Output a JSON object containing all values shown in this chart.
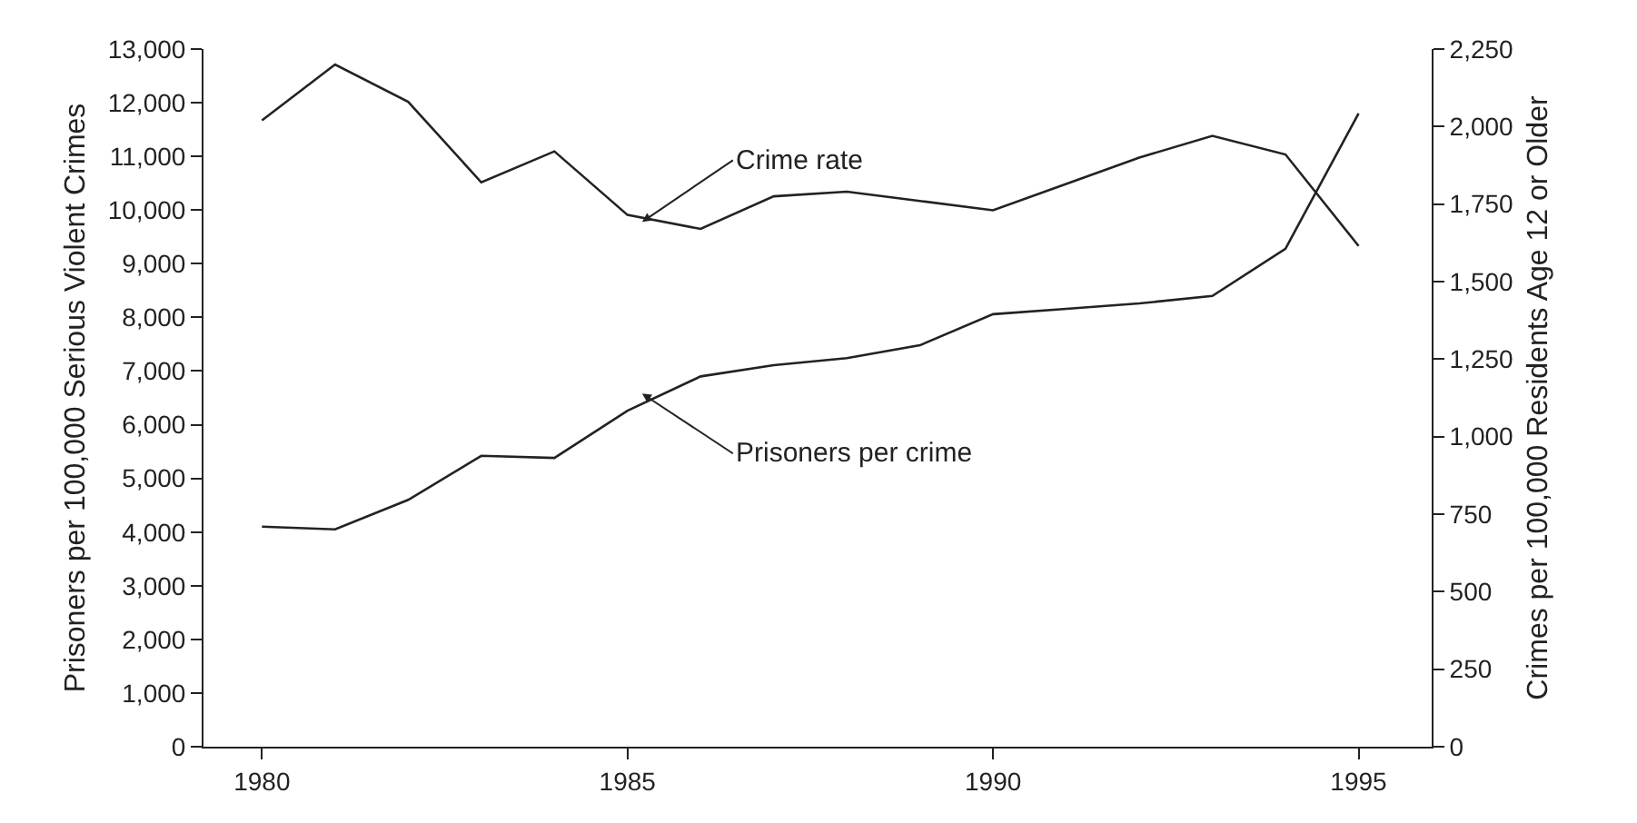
{
  "chart_data": {
    "type": "line",
    "ylabel": "Prisoners per 100,000 Serious Violent Crimes",
    "y2label": "Crimes per 100,000 Residents Age 12 or Older",
    "x": [
      1980,
      1981,
      1982,
      1983,
      1984,
      1985,
      1986,
      1987,
      1988,
      1989,
      1990,
      1991,
      1992,
      1993,
      1994,
      1995
    ],
    "series": [
      {
        "name": "Crime rate",
        "color": "#222222",
        "axis": "y2",
        "values": [
          2020,
          2200,
          2080,
          1820,
          1920,
          1715,
          1670,
          1775,
          1790,
          1760,
          1730,
          1815,
          1900,
          1970,
          1910,
          1615
        ]
      },
      {
        "name": "Prisoners per crime",
        "color": "#222222",
        "values": [
          4100,
          4050,
          4600,
          5420,
          5380,
          6260,
          6900,
          7110,
          7240,
          7480,
          8060,
          8160,
          8260,
          8400,
          9280,
          11800
        ]
      }
    ],
    "xlim": [
      1979.2,
      1996
    ],
    "xticks": [
      1980,
      1985,
      1990,
      1995
    ],
    "ylim": [
      0,
      13000
    ],
    "yticks": [
      {
        "value": 0,
        "label": "0"
      },
      {
        "value": 1000,
        "label": "1,000"
      },
      {
        "value": 2000,
        "label": "2,000"
      },
      {
        "value": 3000,
        "label": "3,000"
      },
      {
        "value": 4000,
        "label": "4,000"
      },
      {
        "value": 5000,
        "label": "5,000"
      },
      {
        "value": 6000,
        "label": "6,000"
      },
      {
        "value": 7000,
        "label": "7,000"
      },
      {
        "value": 8000,
        "label": "8,000"
      },
      {
        "value": 9000,
        "label": "9,000"
      },
      {
        "value": 10000,
        "label": "10,000"
      },
      {
        "value": 11000,
        "label": "11,000"
      },
      {
        "value": 12000,
        "label": "12,000"
      },
      {
        "value": 13000,
        "label": "13,000"
      }
    ],
    "y2lim": [
      0,
      2250
    ],
    "y2ticks": [
      0,
      250,
      500,
      750,
      {
        "value": 1000,
        "label": "1,000"
      },
      {
        "value": 1250,
        "label": "1,250"
      },
      {
        "value": 1500,
        "label": "1,500"
      },
      {
        "value": 1750,
        "label": "1,750"
      },
      {
        "value": 2000,
        "label": "2,000"
      },
      {
        "value": 2250,
        "label": "2,250"
      }
    ],
    "grid": false,
    "legend": false,
    "marker": "none",
    "line_style": "solid"
  }
}
